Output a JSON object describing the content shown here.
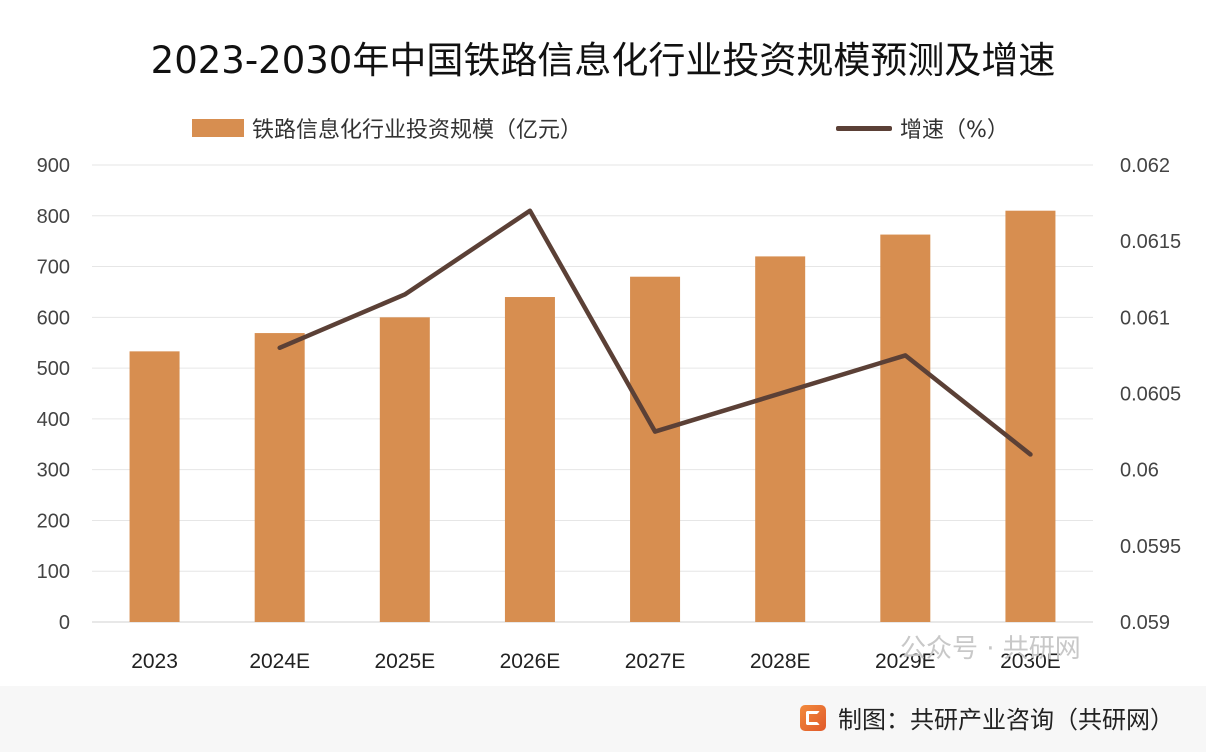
{
  "chart_data": {
    "type": "bar",
    "title": "2023-2030年中国铁路信息化行业投资规模预测及增速",
    "categories": [
      "2023",
      "2024E",
      "2025E",
      "2026E",
      "2027E",
      "2028E",
      "2029E",
      "2030E"
    ],
    "series": [
      {
        "name": "铁路信息化行业投资规模（亿元）",
        "type": "bar",
        "axis": "left",
        "values": [
          533,
          569,
          600,
          640,
          680,
          720,
          763,
          810
        ],
        "color": "#D78E50"
      },
      {
        "name": "增速（%）",
        "type": "line",
        "axis": "right",
        "values": [
          null,
          0.0608,
          0.06115,
          0.0617,
          0.06025,
          0.0605,
          0.06075,
          0.0601
        ],
        "color": "#5B4036"
      }
    ],
    "left_axis": {
      "min": 0,
      "max": 900,
      "ticks": [
        "0",
        "100",
        "200",
        "300",
        "400",
        "500",
        "600",
        "700",
        "800",
        "900"
      ]
    },
    "right_axis": {
      "min": 0.059,
      "max": 0.062,
      "ticks": [
        "0.059",
        "0.0595",
        "0.06",
        "0.0605",
        "0.061",
        "0.0615",
        "0.062"
      ]
    },
    "grid": true,
    "legend_position": "top"
  },
  "footer": {
    "source_text": "制图：共研产业咨询（共研网）",
    "watermark_text": "公众号 · 共研网"
  }
}
